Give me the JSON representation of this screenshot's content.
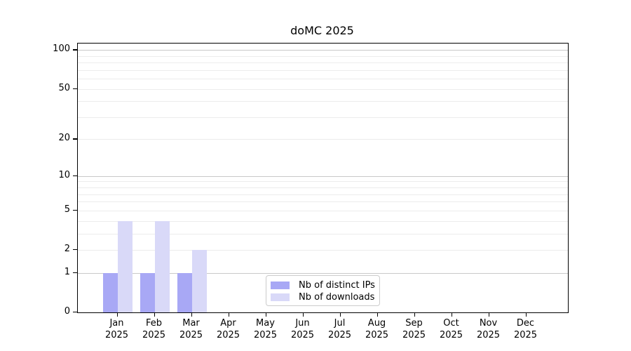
{
  "chart_data": {
    "type": "bar",
    "title": "doMC 2025",
    "categories": [
      "Jan",
      "Feb",
      "Mar",
      "Apr",
      "May",
      "Jun",
      "Jul",
      "Aug",
      "Sep",
      "Oct",
      "Nov",
      "Dec"
    ],
    "x_year_label": "2025",
    "series": [
      {
        "name": "Nb of distinct IPs",
        "color": "#a8a8f5",
        "values": [
          1,
          1,
          1,
          0,
          0,
          0,
          0,
          0,
          0,
          0,
          0,
          0
        ]
      },
      {
        "name": "Nb of downloads",
        "color": "#d9d9f8",
        "values": [
          4,
          4,
          2,
          0,
          0,
          0,
          0,
          0,
          0,
          0,
          0,
          0
        ]
      }
    ],
    "y_ticks": [
      0,
      1,
      2,
      5,
      10,
      20,
      50,
      100
    ],
    "y_scale": "log1p",
    "ylim": [
      0,
      112
    ],
    "grid": "horizontal",
    "grid_minor_values": [
      2,
      3,
      4,
      5,
      6,
      7,
      8,
      9,
      20,
      30,
      40,
      50,
      60,
      70,
      80,
      90
    ],
    "grid_major_values": [
      1,
      10,
      100
    ],
    "legend_position": "inside-bottom-center"
  },
  "colors": {
    "background": "#ffffff",
    "spine": "#000000",
    "grid_minor": "#ececec",
    "grid_major": "#c9c9c9",
    "text": "#000000",
    "legend_border": "#cccccc"
  }
}
